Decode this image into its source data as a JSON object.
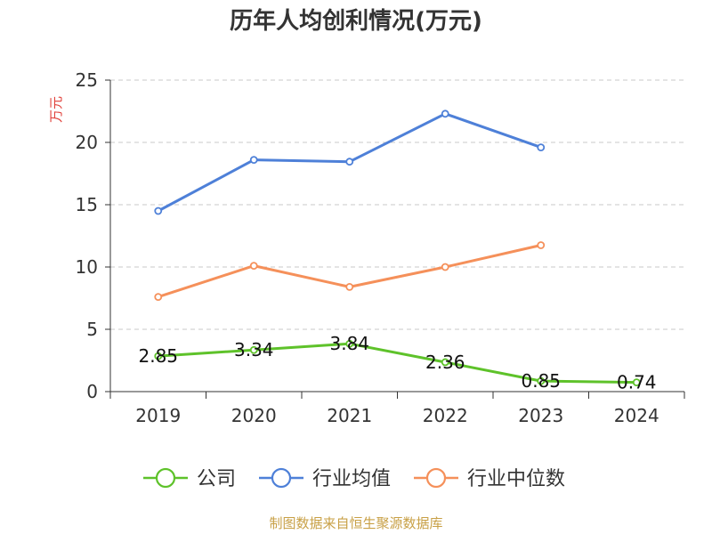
{
  "chart_data": {
    "type": "line",
    "title": "历年人均创利情况(万元)",
    "ylabel": "万元",
    "categories": [
      "2019",
      "2020",
      "2021",
      "2022",
      "2023",
      "2024"
    ],
    "ylim": [
      0,
      25
    ],
    "yticks": [
      0,
      5,
      10,
      15,
      20,
      25
    ],
    "grid": true,
    "legend_position": "bottom",
    "series": [
      {
        "name": "公司",
        "color": "#5ec22a",
        "values": [
          2.85,
          3.34,
          3.84,
          2.36,
          0.85,
          0.74
        ],
        "labels": [
          "2.85",
          "3.34",
          "3.84",
          "2.36",
          "0.85",
          "0.74"
        ]
      },
      {
        "name": "行业均值",
        "color": "#4e80d8",
        "values": [
          14.5,
          18.6,
          18.45,
          22.3,
          19.6,
          null
        ]
      },
      {
        "name": "行业中位数",
        "color": "#f5905a",
        "values": [
          7.6,
          10.1,
          8.4,
          10.0,
          11.75,
          null
        ]
      }
    ],
    "source": "制图数据来自恒生聚源数据库",
    "ylabel_color": "#e0403a"
  }
}
